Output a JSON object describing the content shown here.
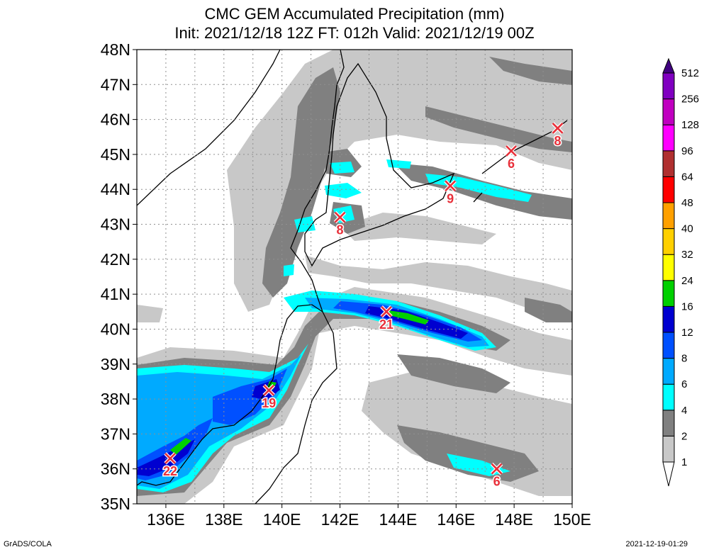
{
  "header": {
    "title": "CMC GEM Accumulated Precipitation (mm)",
    "subtitle": "Init: 2021/12/18 12Z  FT: 012h  Valid: 2021/12/19 00Z"
  },
  "axes": {
    "lat_labels": [
      "48N",
      "47N",
      "46N",
      "45N",
      "44N",
      "43N",
      "42N",
      "41N",
      "40N",
      "39N",
      "38N",
      "37N",
      "36N",
      "35N"
    ],
    "lon_labels": [
      "136E",
      "138E",
      "140E",
      "142E",
      "144E",
      "146E",
      "148E",
      "150E"
    ]
  },
  "markers": [
    {
      "label": "22",
      "lon": 136.15,
      "lat": 36.3
    },
    {
      "label": "19",
      "lon": 139.55,
      "lat": 38.25
    },
    {
      "label": "21",
      "lon": 143.6,
      "lat": 40.5
    },
    {
      "label": "8",
      "lon": 142.0,
      "lat": 43.2
    },
    {
      "label": "9",
      "lon": 145.8,
      "lat": 44.1
    },
    {
      "label": "6",
      "lon": 147.9,
      "lat": 45.1
    },
    {
      "label": "8",
      "lon": 149.5,
      "lat": 45.75
    },
    {
      "label": "6",
      "lon": 147.4,
      "lat": 36.0
    }
  ],
  "colorbar": {
    "levels": [
      "1",
      "2",
      "4",
      "6",
      "8",
      "12",
      "16",
      "24",
      "32",
      "40",
      "48",
      "64",
      "96",
      "128",
      "256",
      "512"
    ],
    "colors": [
      "#ffffff",
      "#c8c8c8",
      "#808080",
      "#00ffff",
      "#00aaff",
      "#0050ff",
      "#0000d0",
      "#00d000",
      "#ffff00",
      "#ffd000",
      "#ffa000",
      "#ff0000",
      "#b03030",
      "#ff00ff",
      "#c000c0",
      "#8000c0",
      "#400080"
    ]
  },
  "footer": {
    "left": "GrADS/COLA",
    "right": "2021-12-19-01:29"
  }
}
